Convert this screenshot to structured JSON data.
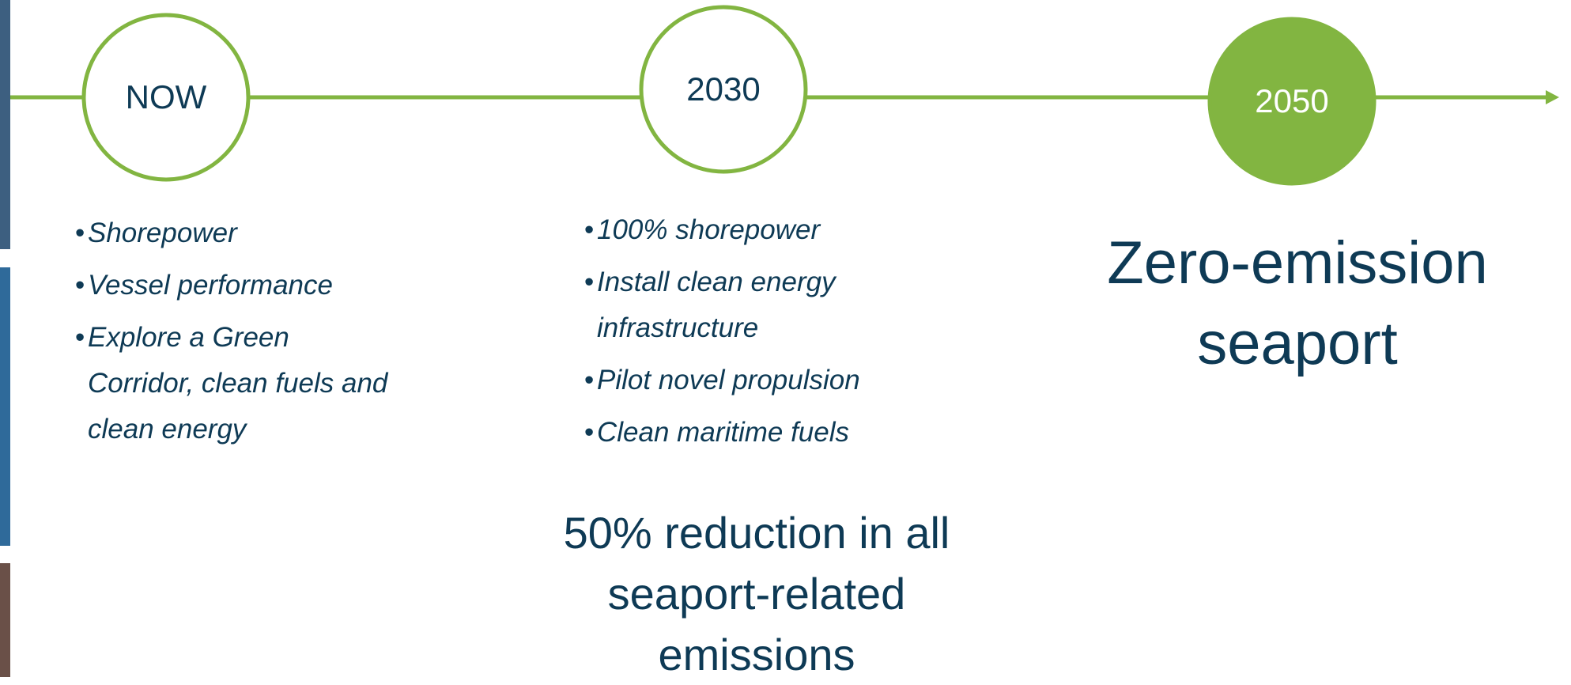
{
  "timeline": [
    {
      "label": "NOW",
      "filled": false,
      "bullets": [
        [
          "Shorepower"
        ],
        [
          "Vessel performance"
        ],
        [
          "Explore a Green",
          "Corridor, clean fuels and",
          "clean energy"
        ]
      ]
    },
    {
      "label": "2030",
      "filled": false,
      "bullets": [
        [
          "100% shorepower"
        ],
        [
          "Install clean energy",
          "infrastructure"
        ],
        [
          "Pilot novel propulsion"
        ],
        [
          "Clean maritime fuels"
        ]
      ],
      "outcome": [
        "50% reduction in all",
        "seaport-related",
        "emissions"
      ]
    },
    {
      "label": "2050",
      "filled": true,
      "outcome": [
        "Zero-emission",
        "seaport"
      ]
    }
  ]
}
